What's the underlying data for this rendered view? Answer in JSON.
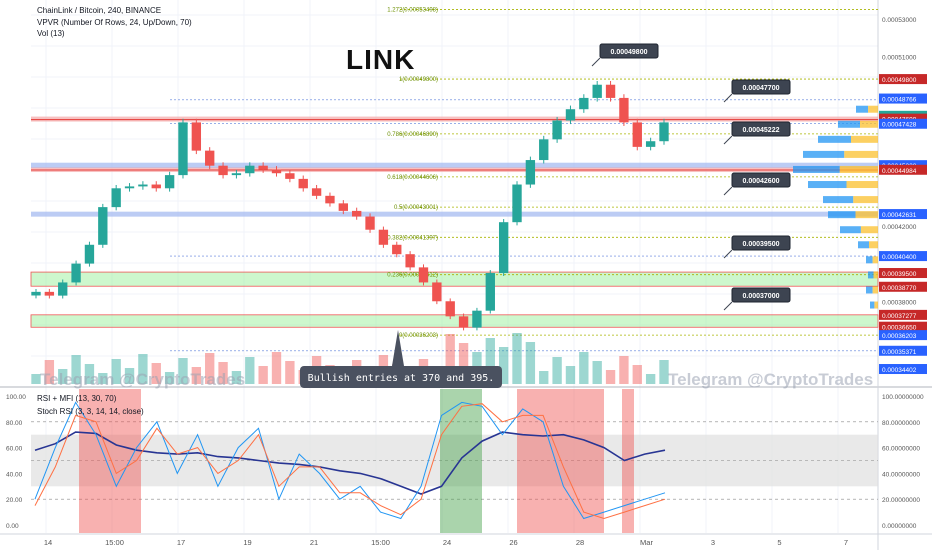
{
  "header": {
    "symbol_line": "ChainLink / Bitcoin, 240, BINANCE",
    "vpvr_line": "VPVR (Number Of Rows, 24, Up/Down, 70)",
    "vol_line": "Vol (13)",
    "big_title": "LINK"
  },
  "rsi_panel": {
    "line1": "RSI + MFI (13, 30, 70)",
    "line2": "Stoch RSI (3, 3, 14, 14, close)"
  },
  "watermark": "Telegram @CryptoTrades",
  "annotation": "Bullish entries at 370 and 395.",
  "colors": {
    "up": "#26a69a",
    "down": "#ef5350",
    "fib_gold": "#a8b400",
    "support_zone": "#90ee90",
    "resistance": "#e55",
    "blue_level": "#2962ff"
  },
  "chart_data": [
    {
      "type": "candlestick",
      "title": "ChainLink / Bitcoin, 240, BINANCE",
      "ylim": [
        0.000335,
        0.00054
      ],
      "x_tick_labels": [
        "14",
        "15:00",
        "17",
        "19",
        "21",
        "15:00",
        "24",
        "26",
        "28",
        "Mar",
        "3",
        "5",
        "7"
      ],
      "y_tick_labels": [
        "0.00053000",
        "0.00051000",
        "0.00049800",
        "0.00048766",
        "0.00047849",
        "0.00047699",
        "0.00047428",
        "0.00045228",
        "0.00044984",
        "0.00042631",
        "0.00042000",
        "0.00040400",
        "0.00039500",
        "0.00038770",
        "0.00038000",
        "0.00037277",
        "0.00036650",
        "0.00036203",
        "0.00035371",
        "0.00034402"
      ],
      "fib_levels": [
        {
          "label": "1.272(0.00053498)",
          "value": 0.00053498
        },
        {
          "label": "1(0.00049800)",
          "value": 0.000498
        },
        {
          "label": "0.786(0.00046890)",
          "value": 0.0004689
        },
        {
          "label": "0.618(0.00044606)",
          "value": 0.00044606
        },
        {
          "label": "0.5(0.00043001)",
          "value": 0.00043001
        },
        {
          "label": "0.382(0.00041397)",
          "value": 0.00041397
        },
        {
          "label": "0.236(0.00039412)",
          "value": 0.00039412
        },
        {
          "label": "0(0.00036203)",
          "value": 0.00036203
        }
      ],
      "callouts": [
        "0.00049800",
        "0.00047700",
        "0.00045222",
        "0.00042600",
        "0.00039500",
        "0.00037000"
      ],
      "price_tags": [
        {
          "text": "0.00049800",
          "color": "#c62828"
        },
        {
          "text": "0.00048766",
          "color": "#2962ff"
        },
        {
          "text": "0.00047849",
          "color": "#26a69a"
        },
        {
          "text": "01:14:59",
          "color": "#26a69a"
        },
        {
          "text": "0.00047699",
          "color": "#c62828"
        },
        {
          "text": "0.00047428",
          "color": "#2962ff"
        },
        {
          "text": "0.00045228",
          "color": "#2962ff"
        },
        {
          "text": "0.00044984",
          "color": "#c62828"
        },
        {
          "text": "0.00042631",
          "color": "#2962ff"
        },
        {
          "text": "0.00040400",
          "color": "#2962ff"
        },
        {
          "text": "0.00039500",
          "color": "#c62828"
        },
        {
          "text": "0.00038770",
          "color": "#c62828"
        },
        {
          "text": "0.00037277",
          "color": "#c62828"
        },
        {
          "text": "0.00036650",
          "color": "#c62828"
        },
        {
          "text": "0.00036203",
          "color": "#2962ff"
        },
        {
          "text": "0.00035371",
          "color": "#2962ff"
        },
        {
          "text": "0.00034402",
          "color": "#2962ff"
        }
      ],
      "support_zones": [
        [
          0.000388,
          0.0003955
        ],
        [
          0.0003662,
          0.0003728
        ]
      ],
      "close_approx": [
        0.000385,
        0.000383,
        0.00039,
        0.0004,
        0.00041,
        0.00043,
        0.00044,
        0.000441,
        0.000442,
        0.00044,
        0.000447,
        0.000475,
        0.00046,
        0.000452,
        0.000447,
        0.000448,
        0.000452,
        0.00045,
        0.000448,
        0.000445,
        0.00044,
        0.000436,
        0.000432,
        0.000428,
        0.000425,
        0.000418,
        0.00041,
        0.000405,
        0.000398,
        0.00039,
        0.00038,
        0.000372,
        0.000366,
        0.000375,
        0.000395,
        0.000422,
        0.000442,
        0.000455,
        0.000466,
        0.000476,
        0.000482,
        0.000488,
        0.000495,
        0.000488,
        0.000475,
        0.000462,
        0.000465,
        0.000475
      ]
    },
    {
      "type": "line",
      "title": "RSI + MFI (13, 30, 70) / Stoch RSI (3, 3, 14, 14, close)",
      "ylim": [
        0,
        100
      ],
      "y_tick_labels": [
        "100.00000000",
        "80.00000000",
        "60.00000000",
        "40.00000000",
        "20.00000000",
        "0.00000000"
      ],
      "left_tick_labels": [
        "100.00",
        "80.00",
        "60.00",
        "40.00",
        "20.00",
        "0.00"
      ],
      "series": [
        {
          "values": [
            58,
            63,
            72,
            71,
            62,
            58,
            56,
            55,
            56,
            53,
            52,
            50,
            48,
            47,
            45,
            42,
            40,
            36,
            30,
            24,
            30,
            52,
            65,
            72,
            70,
            69,
            70,
            66,
            60,
            50,
            55,
            58
          ]
        },
        {
          "values": [
            20,
            60,
            95,
            70,
            30,
            60,
            80,
            40,
            70,
            30,
            60,
            75,
            20,
            55,
            40,
            20,
            30,
            10,
            5,
            30,
            85,
            95,
            92,
            70,
            90,
            80,
            30,
            5,
            10,
            15,
            20,
            25
          ]
        },
        {
          "values": [
            15,
            45,
            85,
            80,
            40,
            50,
            75,
            55,
            60,
            40,
            50,
            70,
            30,
            45,
            45,
            25,
            25,
            15,
            8,
            20,
            70,
            92,
            94,
            80,
            85,
            85,
            45,
            10,
            5,
            10,
            15,
            20
          ]
        }
      ],
      "overbought": 70,
      "oversold": 30
    }
  ]
}
